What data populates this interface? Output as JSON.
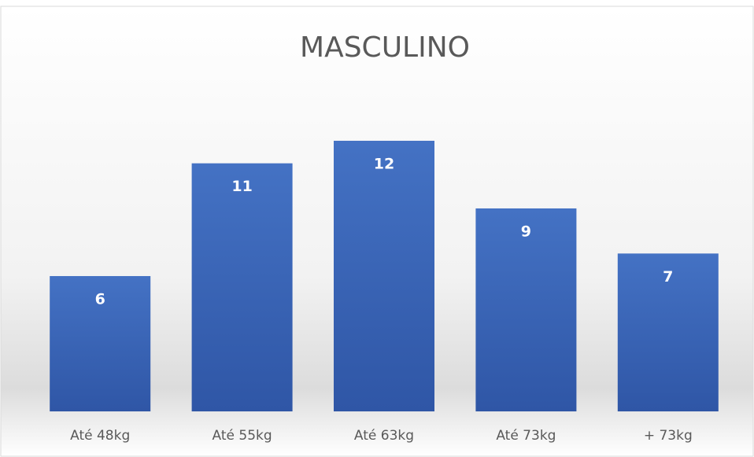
{
  "chart_data": {
    "type": "bar",
    "title": "MASCULINO",
    "categories": [
      "Até 48kg",
      "Até 55kg",
      "Até 63kg",
      "Até 73kg",
      "+ 73kg"
    ],
    "values": [
      6,
      11,
      12,
      9,
      7
    ],
    "color": "#4472c4"
  }
}
